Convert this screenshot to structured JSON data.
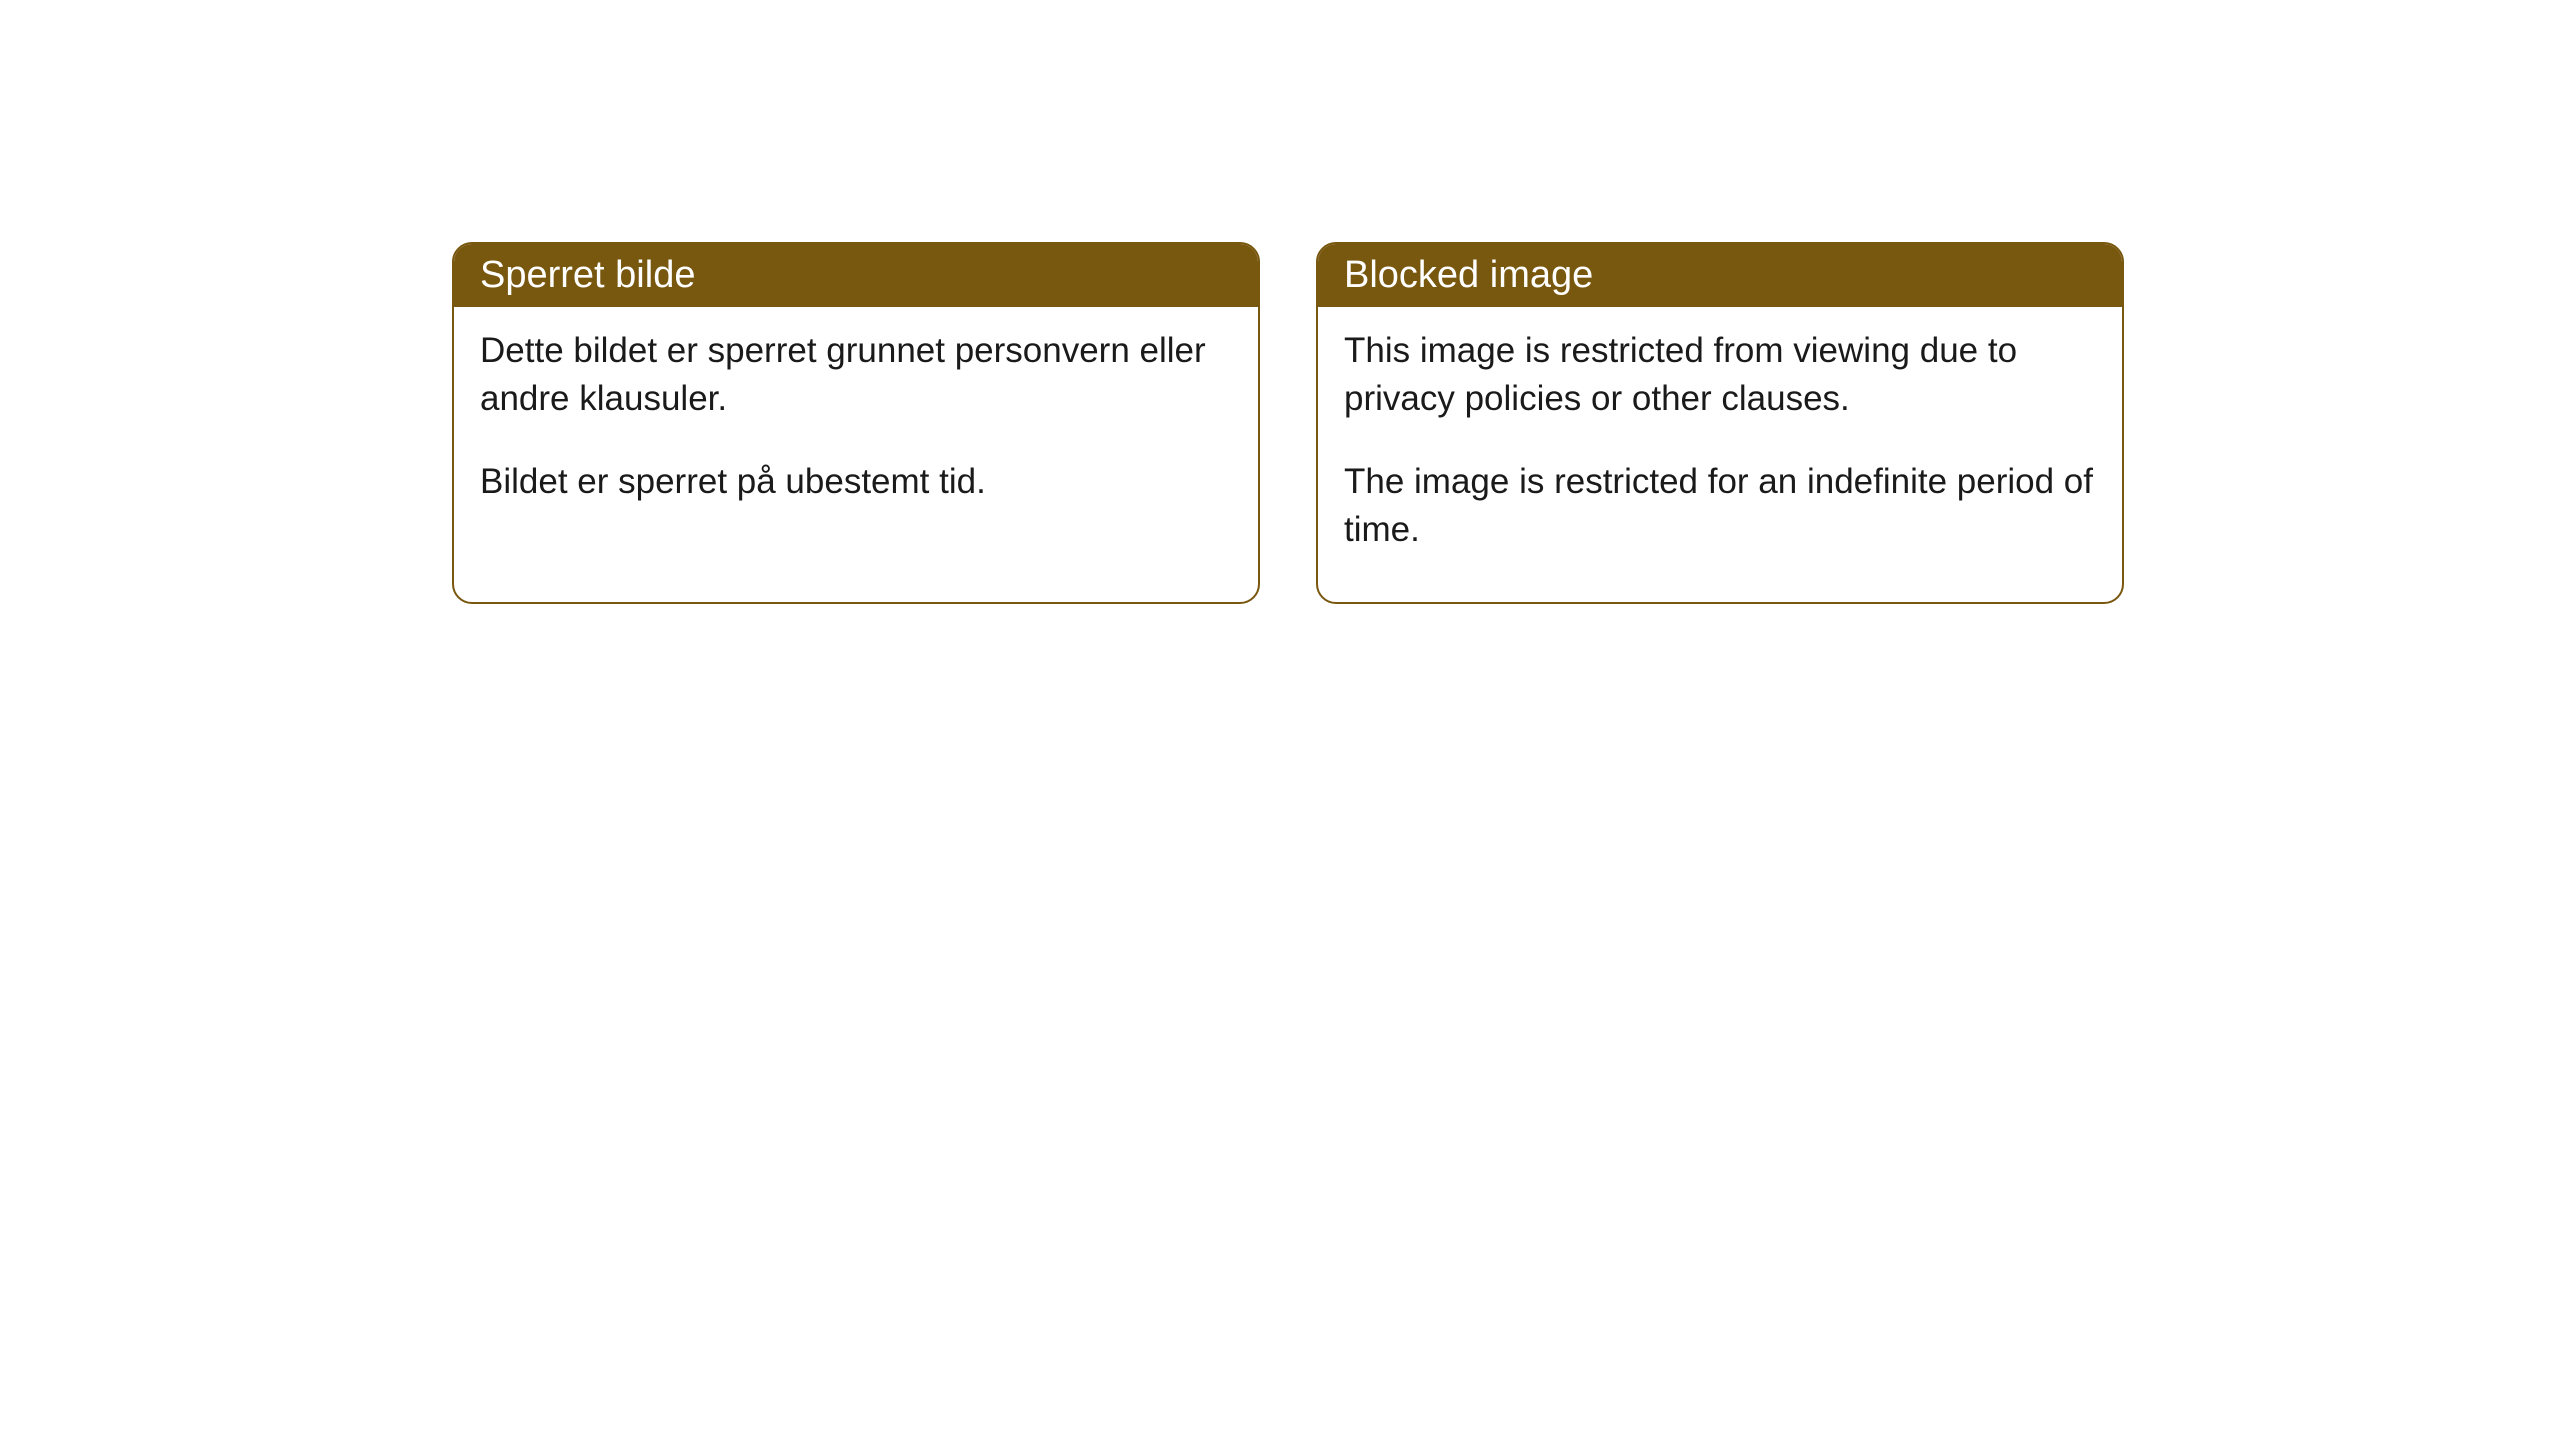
{
  "cards": [
    {
      "title": "Sperret bilde",
      "paragraph1": "Dette bildet er sperret grunnet personvern eller andre klausuler.",
      "paragraph2": "Bildet er sperret på ubestemt tid."
    },
    {
      "title": "Blocked image",
      "paragraph1": "This image is restricted from viewing due to privacy policies or other clauses.",
      "paragraph2": "The image is restricted for an indefinite period of time."
    }
  ],
  "styling": {
    "header_background": "#78570f",
    "header_text_color": "#ffffff",
    "border_color": "#78570f",
    "body_background": "#ffffff",
    "body_text_color": "#1a1a1a",
    "border_radius": 20,
    "header_fontsize": 38,
    "body_fontsize": 35
  }
}
